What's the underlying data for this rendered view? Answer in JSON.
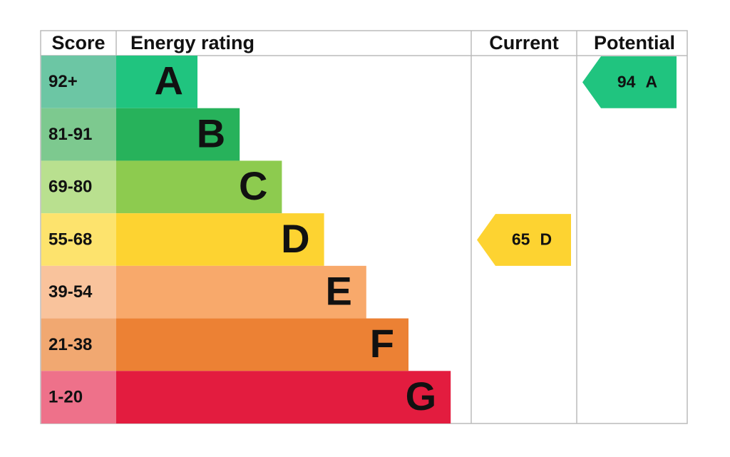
{
  "header": {
    "score": "Score",
    "rating": "Energy rating",
    "current": "Current",
    "potential": "Potential"
  },
  "bands": [
    {
      "score": "92+",
      "letter": "A",
      "color": "#20c47f",
      "score_color": "#6cc6a4"
    },
    {
      "score": "81-91",
      "letter": "B",
      "color": "#27b25b",
      "score_color": "#7dc98f"
    },
    {
      "score": "69-80",
      "letter": "C",
      "color": "#8dcb4f",
      "score_color": "#b9e08f"
    },
    {
      "score": "55-68",
      "letter": "D",
      "color": "#fdd331",
      "score_color": "#fde36d"
    },
    {
      "score": "39-54",
      "letter": "E",
      "color": "#f8a96b",
      "score_color": "#f9c39c"
    },
    {
      "score": "21-38",
      "letter": "F",
      "color": "#ec8134",
      "score_color": "#f1a871"
    },
    {
      "score": "1-20",
      "letter": "G",
      "color": "#e31c3f",
      "score_color": "#ee718a"
    }
  ],
  "current": {
    "value": 65,
    "letter": "D"
  },
  "potential": {
    "value": 94,
    "letter": "A"
  }
}
